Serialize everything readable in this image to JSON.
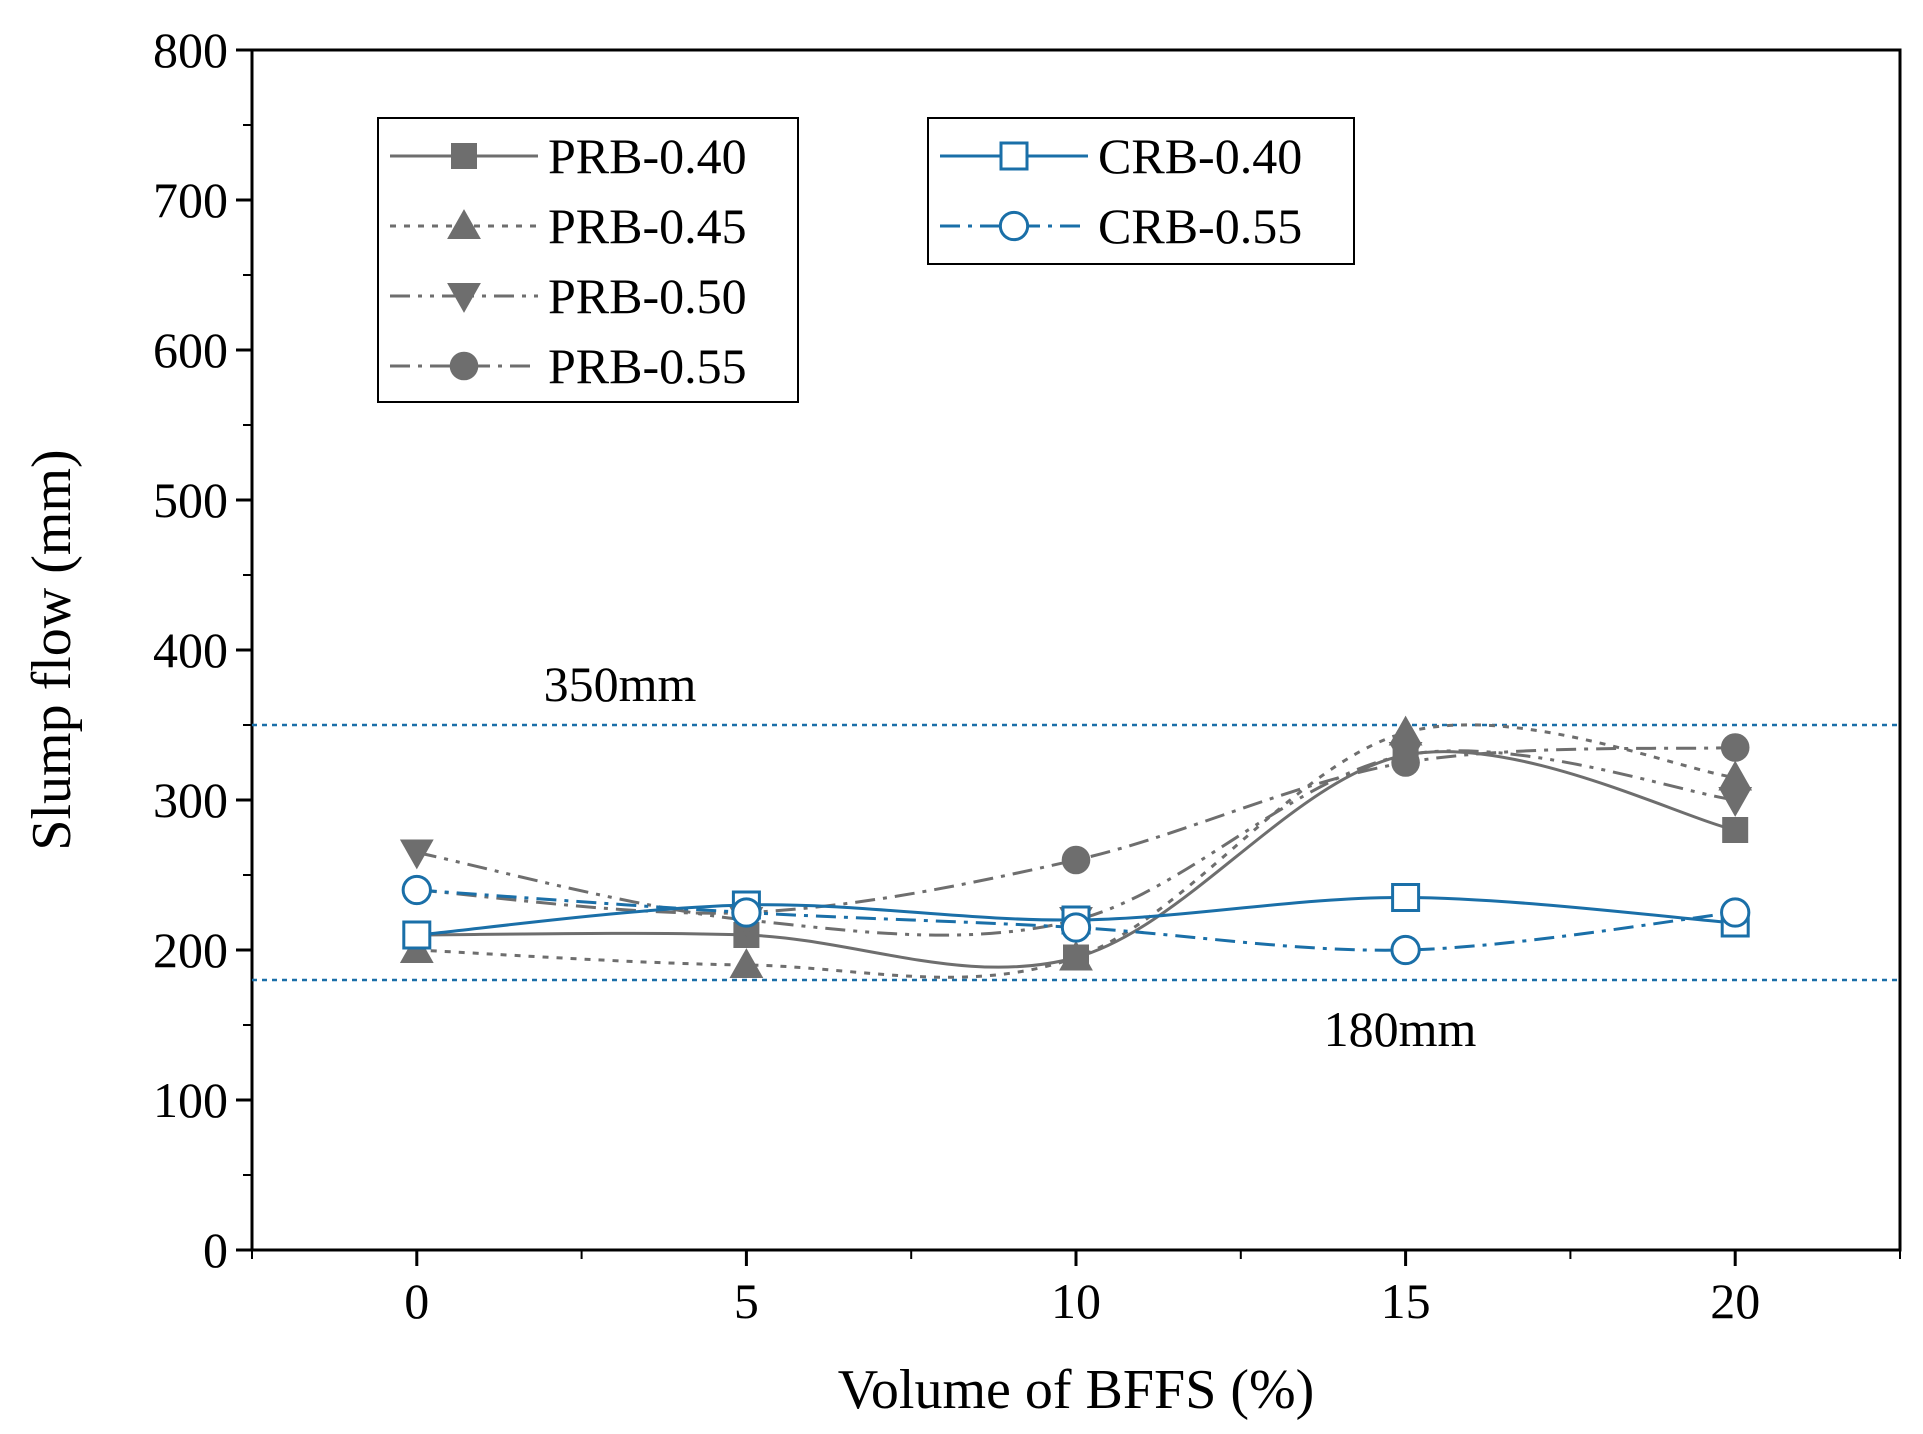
{
  "chart_data": {
    "type": "line",
    "xlabel": "Volume of BFFS (%)",
    "ylabel": "Slump flow (mm)",
    "xlim": [
      -2.5,
      22.5
    ],
    "ylim": [
      0,
      800
    ],
    "x_ticks": [
      0,
      5,
      10,
      15,
      20
    ],
    "y_ticks": [
      0,
      100,
      200,
      300,
      400,
      500,
      600,
      700,
      800
    ],
    "x": [
      0,
      5,
      10,
      15,
      20
    ],
    "series": [
      {
        "name": "PRB-0.40",
        "values": [
          210,
          210,
          195,
          330,
          280
        ],
        "color": "#6e6e6e",
        "marker": "square-filled",
        "line": "solid"
      },
      {
        "name": "PRB-0.45",
        "values": [
          200,
          190,
          195,
          345,
          315
        ],
        "color": "#6e6e6e",
        "marker": "triangle-up-filled",
        "line": "dotted"
      },
      {
        "name": "PRB-0.50",
        "values": [
          265,
          220,
          220,
          330,
          300
        ],
        "color": "#6e6e6e",
        "marker": "triangle-down-filled",
        "line": "dash-dot-dot"
      },
      {
        "name": "PRB-0.55",
        "values": [
          240,
          225,
          260,
          325,
          335
        ],
        "color": "#6e6e6e",
        "marker": "circle-filled",
        "line": "dash-dot"
      },
      {
        "name": "CRB-0.40",
        "values": [
          210,
          230,
          220,
          235,
          218
        ],
        "color": "#1a6fa8",
        "marker": "square-open",
        "line": "solid"
      },
      {
        "name": "CRB-0.55",
        "values": [
          240,
          225,
          215,
          200,
          225
        ],
        "color": "#1a6fa8",
        "marker": "circle-open",
        "line": "dash-dot"
      }
    ],
    "reference_lines": [
      {
        "y": 350,
        "label": "350mm",
        "color": "#1a6fa8"
      },
      {
        "y": 180,
        "label": "180mm",
        "color": "#1a6fa8"
      }
    ],
    "legend_placement": "top-left (two boxes)"
  }
}
